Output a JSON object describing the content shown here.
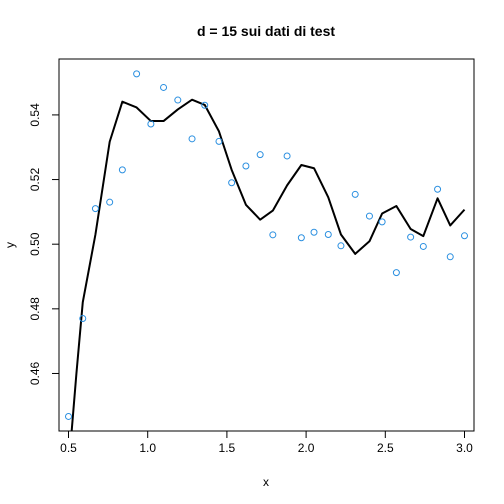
{
  "chart_data": {
    "type": "scatter",
    "title": "d = 15 sui dati di test",
    "xlabel": "x",
    "ylabel": "y",
    "xlim": [
      0.44,
      3.06
    ],
    "ylim": [
      0.4422,
      0.5573
    ],
    "xticks": [
      0.5,
      1.0,
      1.5,
      2.0,
      2.5,
      3.0
    ],
    "xtick_labels": [
      "0.5",
      "1.0",
      "1.5",
      "2.0",
      "2.5",
      "3.0"
    ],
    "yticks": [
      0.46,
      0.48,
      0.5,
      0.52,
      0.54
    ],
    "ytick_labels": [
      "0.46",
      "0.48",
      "0.50",
      "0.52",
      "0.54"
    ],
    "grid": false,
    "colors": {
      "points": "#2A8FE0",
      "line": "#000000"
    },
    "series": [
      {
        "kind": "points",
        "x": [
          0.5,
          0.59,
          0.67,
          0.76,
          0.84,
          0.93,
          1.02,
          1.1,
          1.19,
          1.28,
          1.36,
          1.45,
          1.53,
          1.62,
          1.71,
          1.79,
          1.88,
          1.97,
          2.05,
          2.14,
          2.22,
          2.31,
          2.4,
          2.48,
          2.57,
          2.66,
          2.74,
          2.83,
          2.91,
          3.0
        ],
        "y": [
          0.4467,
          0.477,
          0.511,
          0.513,
          0.523,
          0.5527,
          0.5372,
          0.5485,
          0.5446,
          0.5326,
          0.543,
          0.5318,
          0.519,
          0.5242,
          0.5277,
          0.5029,
          0.5273,
          0.502,
          0.5037,
          0.503,
          0.4995,
          0.5154,
          0.5087,
          0.5069,
          0.4912,
          0.5022,
          0.4993,
          0.517,
          0.4961,
          0.5026
        ]
      },
      {
        "kind": "line",
        "x": [
          0.5,
          0.52,
          0.55,
          0.59,
          0.67,
          0.76,
          0.84,
          0.93,
          1.02,
          1.1,
          1.19,
          1.28,
          1.36,
          1.45,
          1.53,
          1.62,
          1.71,
          1.79,
          1.88,
          1.97,
          2.05,
          2.14,
          2.22,
          2.31,
          2.4,
          2.48,
          2.57,
          2.66,
          2.74,
          2.83,
          2.91,
          3.0
        ],
        "y": [
          0.43,
          0.4422,
          0.46,
          0.482,
          0.503,
          0.5317,
          0.5441,
          0.5423,
          0.5381,
          0.5381,
          0.5417,
          0.5447,
          0.5431,
          0.5349,
          0.523,
          0.5122,
          0.5076,
          0.5104,
          0.5182,
          0.5245,
          0.5235,
          0.5145,
          0.503,
          0.497,
          0.5009,
          0.5095,
          0.5118,
          0.5047,
          0.5025,
          0.5142,
          0.5058,
          0.5107
        ]
      }
    ]
  }
}
